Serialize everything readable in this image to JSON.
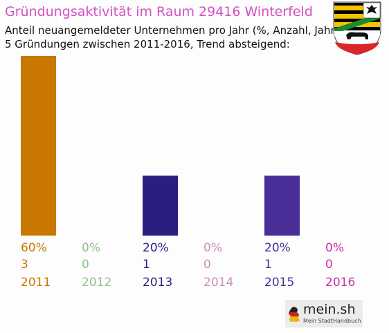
{
  "header": {
    "title": "Gründungsaktivität im Raum 29416 Winterfeld",
    "subtitle_line1": "Anteil neuangemeldeter Unternehmen pro Jahr (%, Anzahl, Jahr)",
    "subtitle_line2": "5 Gründungen zwischen 2011-2016, Trend absteigend:",
    "title_color": "#d64fc3"
  },
  "crest": {
    "icon": "coat-of-arms-icon"
  },
  "chart_data": {
    "type": "bar",
    "categories": [
      "2011",
      "2012",
      "2013",
      "2014",
      "2015",
      "2016"
    ],
    "percent_labels": [
      "60%",
      "0%",
      "20%",
      "0%",
      "20%",
      "0%"
    ],
    "counts": [
      3,
      0,
      1,
      0,
      1,
      0
    ],
    "values": [
      60,
      0,
      20,
      0,
      20,
      0
    ],
    "colors": [
      "#c87800",
      "#8fbf8a",
      "#2a1f80",
      "#c890bc",
      "#4a2e98",
      "#cc2fa4"
    ],
    "ylim": [
      0,
      60
    ],
    "grid": false,
    "title": "",
    "xlabel": "",
    "ylabel": ""
  },
  "logo": {
    "name": "mein.sh",
    "tagline": "Mein StadtHandbuch",
    "icon": "germany-map-icon"
  }
}
